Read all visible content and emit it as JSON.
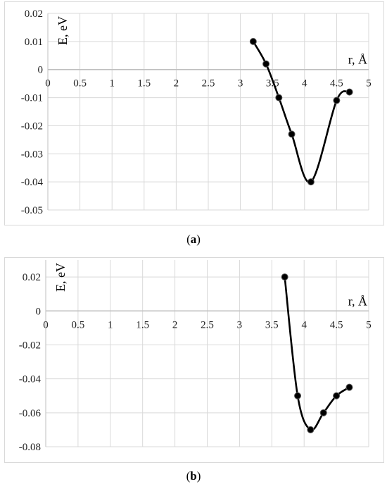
{
  "captions": [
    {
      "open": "(",
      "label": "a",
      "close": ")"
    },
    {
      "open": "(",
      "label": "b",
      "close": ")"
    }
  ],
  "chart_data": [
    {
      "type": "line",
      "xlabel": "r, Å",
      "ylabel": "E, eV",
      "xlim": [
        0,
        5
      ],
      "ylim": [
        -0.05,
        0.02
      ],
      "xticks": [
        0,
        0.5,
        1,
        1.5,
        2,
        2.5,
        3,
        3.5,
        4,
        4.5,
        5
      ],
      "xtick_labels": [
        "0",
        "0.5",
        "1",
        "1.5",
        "2",
        "2.5",
        "3",
        "3.5",
        "4",
        "4.5",
        "5"
      ],
      "yticks": [
        0.02,
        0.01,
        0,
        -0.01,
        -0.02,
        -0.03,
        -0.04,
        -0.05
      ],
      "ytick_labels": [
        "0.02",
        "0.01",
        "0",
        "-0.01",
        "-0.02",
        "-0.03",
        "-0.04",
        "-0.05"
      ],
      "grid": true,
      "line_color": "#000000",
      "grid_color": "#d9d9d9",
      "series": [
        {
          "x": [
            3.2,
            3.4,
            3.6,
            3.8,
            4.1,
            4.5,
            4.7
          ],
          "y": [
            0.01,
            0.002,
            -0.01,
            -0.023,
            -0.04,
            -0.011,
            -0.008
          ]
        }
      ]
    },
    {
      "type": "line",
      "xlabel": "r, Å",
      "ylabel": "E, eV",
      "xlim": [
        0,
        5
      ],
      "ylim": [
        -0.08,
        0.03
      ],
      "xticks": [
        0,
        0.5,
        1,
        1.5,
        2,
        2.5,
        3,
        3.5,
        4,
        4.5,
        5
      ],
      "xtick_labels": [
        "0",
        "0.5",
        "1",
        "1.5",
        "2",
        "2.5",
        "3",
        "3.5",
        "4",
        "4.5",
        "5"
      ],
      "yticks": [
        0.02,
        0,
        -0.02,
        -0.04,
        -0.06,
        -0.08
      ],
      "ytick_labels": [
        "0.02",
        "0",
        "-0.02",
        "-0.04",
        "-0.06",
        "-0.08"
      ],
      "grid": true,
      "line_color": "#000000",
      "grid_color": "#d9d9d9",
      "series": [
        {
          "x": [
            3.7,
            3.9,
            4.1,
            4.3,
            4.5,
            4.7
          ],
          "y": [
            0.02,
            -0.05,
            -0.07,
            -0.06,
            -0.05,
            -0.045
          ]
        }
      ]
    }
  ]
}
